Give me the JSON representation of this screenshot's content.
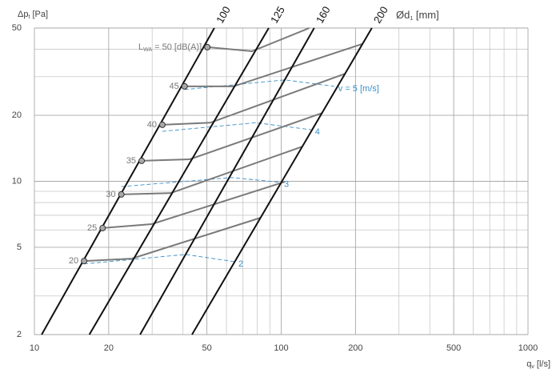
{
  "chart_data": {
    "type": "line",
    "log_x": true,
    "log_y": true,
    "grid": true,
    "xlim": [
      10,
      1000
    ],
    "ylim": [
      2,
      50
    ],
    "xticks": [
      10,
      20,
      50,
      100,
      200,
      500,
      1000
    ],
    "yticks": [
      2,
      5,
      10,
      20,
      50
    ],
    "xminor": [
      30,
      40,
      60,
      70,
      80,
      90,
      300,
      400,
      600,
      700,
      800,
      900
    ],
    "yminor": [
      3,
      4,
      6,
      7,
      8,
      9,
      30,
      40
    ],
    "x_label": {
      "main": "q",
      "sub": "v",
      "text": " [l/s]"
    },
    "y_label": {
      "main": "Δp",
      "sub": "t",
      "text": " [Pa]"
    },
    "diameter_label": {
      "main": "Ød",
      "sub": "1",
      "text": " [mm]"
    },
    "level_symbol": {
      "main": "L",
      "sub": "WA"
    },
    "diameters": {
      "color": "#111111",
      "series": [
        {
          "name": "100",
          "x": [
            10.7,
            53.6
          ],
          "values": [
            2,
            50
          ]
        },
        {
          "name": "125",
          "x": [
            16.7,
            89
          ],
          "values": [
            2,
            50
          ]
        },
        {
          "name": "160",
          "x": [
            26.8,
            136
          ],
          "values": [
            2,
            50
          ]
        },
        {
          "name": "200",
          "x": [
            43.5,
            233
          ],
          "values": [
            2,
            50
          ]
        }
      ]
    },
    "levels": {
      "color": "#7a7a7a",
      "series": [
        {
          "name": "20",
          "x": [
            15.9,
            24.8,
            82.6
          ],
          "values": [
            4.33,
            4.44,
            6.82
          ]
        },
        {
          "name": "25",
          "x": [
            18.9,
            29.9,
            103.5
          ],
          "values": [
            6.12,
            6.38,
            9.95
          ]
        },
        {
          "name": "30",
          "x": [
            22.5,
            35.6,
            122
          ],
          "values": [
            8.71,
            8.83,
            14.4
          ]
        },
        {
          "name": "35",
          "x": [
            27.2,
            42.6,
            147
          ],
          "values": [
            12.4,
            12.6,
            20.5
          ]
        },
        {
          "name": "40",
          "x": [
            33.0,
            51.6,
            182
          ],
          "values": [
            18.1,
            18.5,
            31.0
          ]
        },
        {
          "name": "45",
          "x": [
            40.6,
            64.1,
            213
          ],
          "values": [
            27.1,
            27.1,
            42.3
          ]
        },
        {
          "name": " = 50 [dB(A)]",
          "x": [
            50.2,
            76.2,
            130
          ],
          "values": [
            40.9,
            39.2,
            50
          ]
        }
      ]
    },
    "velocities": {
      "color": "#3a8fc8",
      "series": [
        {
          "name": "2",
          "x": [
            15.9,
            41.0,
            64.6
          ],
          "values": [
            4.2,
            4.64,
            4.3
          ]
        },
        {
          "name": "3",
          "x": [
            22.5,
            63.1,
            98.9
          ],
          "values": [
            9.46,
            10.4,
            9.9
          ]
        },
        {
          "name": "4",
          "x": [
            33.0,
            79,
            132
          ],
          "values": [
            16.9,
            18.5,
            17.2
          ]
        },
        {
          "name": "v = 5 [m/s]",
          "x": [
            40.6,
            103.5,
            164
          ],
          "values": [
            26.2,
            29.0,
            27.1
          ]
        }
      ]
    }
  }
}
